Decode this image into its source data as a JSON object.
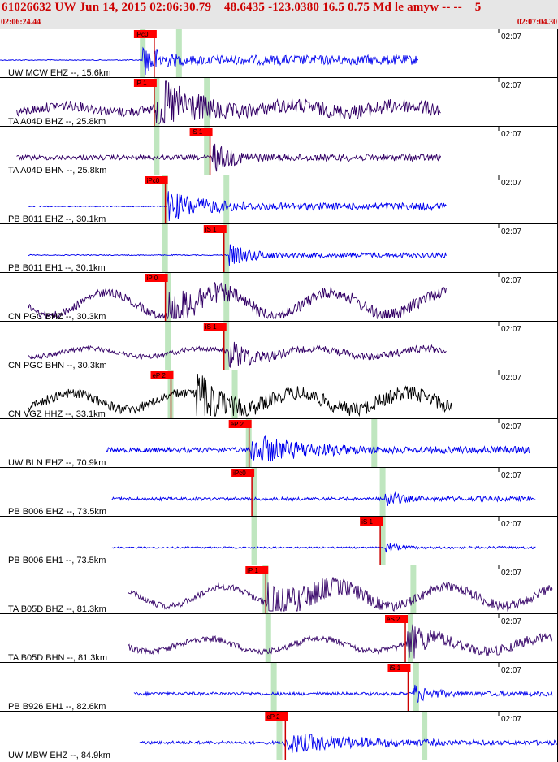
{
  "header": {
    "title": "61026632 UW Jun 14, 2015 02:06:30.79    48.6435 -123.0380 16.5 0.75 Md le amyw -- --    5",
    "start_time": "02:06:24.44",
    "end_time": "02:07:04.30"
  },
  "colors": {
    "header_bg": "#e6e6e6",
    "header_text": "#cc0000",
    "pick_box": "#ff0000",
    "pick_line": "#cc0000",
    "theoretical_band": "#bfe6bf",
    "trace_blue": "#0000ee",
    "trace_purple": "#330066",
    "trace_black": "#000000"
  },
  "traces": [
    {
      "label": "UW MCW EHZ --, 15.6km",
      "time_tick": "02:07",
      "color": "#0000ee",
      "x_start": 0.0,
      "x_end": 0.75,
      "amp": 4,
      "onset": 0.255,
      "coda": 0.35,
      "osc": 0,
      "picks": [
        {
          "label": "iPc0",
          "x": 0.24
        }
      ],
      "bands": [
        0.255,
        0.32
      ],
      "flat_start": true
    },
    {
      "label": "TA A04D BHZ --, 25.8km",
      "time_tick": "02:07",
      "color": "#330066",
      "x_start": 0.03,
      "x_end": 0.79,
      "amp": 6,
      "onset": 0.28,
      "coda": 0.48,
      "osc": 4,
      "picks": [
        {
          "label": "iP 1",
          "x": 0.24
        }
      ],
      "bands": [
        0.28,
        0.37
      ],
      "flat_start": false
    },
    {
      "label": "TA A04D BHN --, 25.8km",
      "time_tick": "02:07",
      "color": "#330066",
      "x_start": 0.03,
      "x_end": 0.79,
      "amp": 3,
      "onset": 0.38,
      "coda": 0.5,
      "osc": 0,
      "picks": [
        {
          "label": "iS 1",
          "x": 0.34
        }
      ],
      "bands": [
        0.28,
        0.37
      ],
      "flat_start": false
    },
    {
      "label": "PB B011 EHZ --, 30.1km",
      "time_tick": "02:07",
      "color": "#0000ee",
      "x_start": 0.05,
      "x_end": 0.8,
      "amp": 3,
      "onset": 0.3,
      "coda": 0.5,
      "osc": 0,
      "picks": [
        {
          "label": "iPc0",
          "x": 0.26
        }
      ],
      "bands": [
        0.295,
        0.405
      ],
      "flat_start": true
    },
    {
      "label": "PB B011 EH1 --, 30.1km",
      "time_tick": "02:07",
      "color": "#0000ee",
      "x_start": 0.05,
      "x_end": 0.8,
      "amp": 2,
      "onset": 0.41,
      "coda": 0.55,
      "osc": 0,
      "picks": [
        {
          "label": "iS 1",
          "x": 0.365
        }
      ],
      "bands": [
        0.295,
        0.405
      ],
      "flat_start": true
    },
    {
      "label": "CN PGC BHZ --, 30.3km",
      "time_tick": "02:07",
      "color": "#330066",
      "x_start": 0.05,
      "x_end": 0.8,
      "amp": 5,
      "onset": 0.3,
      "coda": 0.5,
      "osc": 14,
      "picks": [
        {
          "label": "iP 0",
          "x": 0.26
        }
      ],
      "bands": [
        0.3,
        0.405
      ],
      "flat_start": false
    },
    {
      "label": "CN PGC BHN --, 30.3km",
      "time_tick": "02:07",
      "color": "#330066",
      "x_start": 0.05,
      "x_end": 0.8,
      "amp": 3,
      "onset": 0.41,
      "coda": 0.55,
      "osc": 5,
      "picks": [
        {
          "label": "iS 1",
          "x": 0.365
        }
      ],
      "bands": [
        0.3,
        0.405
      ],
      "flat_start": false
    },
    {
      "label": "CN VGZ HHZ --, 33.1km",
      "time_tick": "02:07",
      "color": "#000000",
      "x_start": 0.05,
      "x_end": 0.81,
      "amp": 6,
      "onset": 0.35,
      "coda": 0.5,
      "osc": 10,
      "picks": [
        {
          "label": "eP 2",
          "x": 0.27
        }
      ],
      "bands": [
        0.305,
        0.42
      ],
      "flat_start": false
    },
    {
      "label": "UW BLN EHZ --, 70.9km",
      "time_tick": "02:07",
      "color": "#0000ee",
      "x_start": 0.19,
      "x_end": 0.95,
      "amp": 3,
      "onset": 0.45,
      "coda": 0.75,
      "osc": 0,
      "picks": [
        {
          "label": "eP 2",
          "x": 0.41
        }
      ],
      "bands": [
        0.445,
        0.67
      ],
      "flat_start": false
    },
    {
      "label": "PB B006 EHZ --, 73.5km",
      "time_tick": "02:07",
      "color": "#0000ee",
      "x_start": 0.2,
      "x_end": 0.96,
      "amp": 2,
      "onset": 0.69,
      "coda": 0.77,
      "osc": 0,
      "picks": [
        {
          "label": "iPc0",
          "x": 0.415
        }
      ],
      "bands": [
        0.455,
        0.685
      ],
      "flat_start": false
    },
    {
      "label": "PB B006 EH1 --, 73.5km",
      "time_tick": "02:07",
      "color": "#0000ee",
      "x_start": 0.2,
      "x_end": 0.96,
      "amp": 1,
      "onset": 0.69,
      "coda": 0.77,
      "osc": 0,
      "picks": [
        {
          "label": "iS 1",
          "x": 0.645
        }
      ],
      "bands": [
        0.455,
        0.685
      ],
      "flat_start": false
    },
    {
      "label": "TA B05D BHZ --, 81.3km",
      "time_tick": "02:07",
      "color": "#330066",
      "x_start": 0.23,
      "x_end": 0.99,
      "amp": 4,
      "onset": 0.48,
      "coda": 0.8,
      "osc": 12,
      "picks": [
        {
          "label": "iP 1",
          "x": 0.44
        }
      ],
      "bands": [
        0.475,
        0.74
      ],
      "flat_start": false
    },
    {
      "label": "TA B05D BHN --, 81.3km",
      "time_tick": "02:07",
      "color": "#330066",
      "x_start": 0.23,
      "x_end": 0.99,
      "amp": 4,
      "onset": 0.73,
      "coda": 0.85,
      "osc": 8,
      "picks": [
        {
          "label": "eS 2",
          "x": 0.69
        }
      ],
      "bands": [
        0.48,
        0.735
      ],
      "flat_start": false
    },
    {
      "label": "PB B926 EH1 --, 82.6km",
      "time_tick": "02:07",
      "color": "#0000ee",
      "x_start": 0.24,
      "x_end": 0.99,
      "amp": 2,
      "onset": 0.74,
      "coda": 0.85,
      "osc": 0,
      "picks": [
        {
          "label": "iS 1",
          "x": 0.695
        }
      ],
      "bands": [
        0.49,
        0.745
      ],
      "flat_start": false
    },
    {
      "label": "UW MBW EHZ --, 84.9km",
      "time_tick": "02:07",
      "color": "#0000ee",
      "x_start": 0.25,
      "x_end": 1.0,
      "amp": 2,
      "onset": 0.51,
      "coda": 0.95,
      "osc": 0,
      "picks": [
        {
          "label": "eP 2",
          "x": 0.475
        }
      ],
      "bands": [
        0.5,
        0.76
      ],
      "flat_start": false
    }
  ]
}
